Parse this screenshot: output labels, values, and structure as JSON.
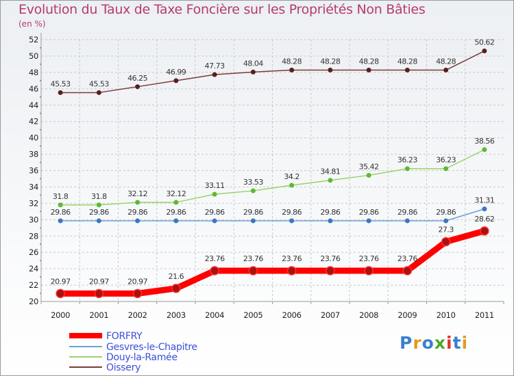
{
  "title": "Evolution du Taux de Taxe Foncière sur les Propriétés Non Bâties",
  "subtitle": "(en %)",
  "logo": {
    "text": "Proxiti",
    "colors": [
      "#3a7fd0",
      "#e39a1f",
      "#3a7fd0",
      "#4caa2c",
      "#e0342b",
      "#3a7fd0",
      "#e39a1f"
    ]
  },
  "chart_data": {
    "type": "line",
    "title": "Evolution du Taux de Taxe Foncière sur les Propriétés Non Bâties",
    "ylabel": "(en %)",
    "xlabel": "",
    "categories": [
      "2000",
      "2001",
      "2002",
      "2003",
      "2004",
      "2005",
      "2006",
      "2007",
      "2008",
      "2009",
      "2010",
      "2011"
    ],
    "ylim": [
      20,
      52
    ],
    "yticks": [
      "20",
      "22",
      "24",
      "26",
      "28",
      "30",
      "32",
      "34",
      "36",
      "38",
      "40",
      "42",
      "44",
      "46",
      "48",
      "50",
      "52"
    ],
    "grid": true,
    "legend_position": "bottom-left",
    "series": [
      {
        "name": "FORFRY",
        "color": "#ff0000",
        "point_color": "#aa1111",
        "width": 9,
        "marker": 6,
        "values": [
          20.97,
          20.97,
          20.97,
          21.6,
          23.76,
          23.76,
          23.76,
          23.76,
          23.76,
          23.76,
          27.3,
          28.62
        ],
        "labels": [
          "20.97",
          "20.97",
          "20.97",
          "21.6",
          "23.76",
          "23.76",
          "23.76",
          "23.76",
          "23.76",
          "23.76",
          "27.3",
          "28.62"
        ]
      },
      {
        "name": "Gesvres-le-Chapitre",
        "color": "#6a9fd4",
        "point_color": "#3a78c0",
        "width": 1.5,
        "marker": 3.5,
        "values": [
          29.86,
          29.86,
          29.86,
          29.86,
          29.86,
          29.86,
          29.86,
          29.86,
          29.86,
          29.86,
          29.86,
          31.31
        ],
        "labels": [
          "29.86",
          "29.86",
          "29.86",
          "29.86",
          "29.86",
          "29.86",
          "29.86",
          "29.86",
          "29.86",
          "29.86",
          "29.86",
          "31.31"
        ]
      },
      {
        "name": "Douy-la-Ramée",
        "color": "#9ad26a",
        "point_color": "#5fb832",
        "width": 1.5,
        "marker": 3.5,
        "values": [
          31.8,
          31.8,
          32.12,
          32.12,
          33.11,
          33.53,
          34.2,
          34.81,
          35.42,
          36.23,
          36.23,
          38.56
        ],
        "labels": [
          "31.8",
          "31.8",
          "32.12",
          "32.12",
          "33.11",
          "33.53",
          "34.2",
          "34.81",
          "35.42",
          "36.23",
          "36.23",
          "38.56"
        ]
      },
      {
        "name": "Oissery",
        "color": "#7a3a3a",
        "point_color": "#5a1f1f",
        "width": 1.5,
        "marker": 3.5,
        "values": [
          45.53,
          45.53,
          46.25,
          46.99,
          47.73,
          48.04,
          48.28,
          48.28,
          48.28,
          48.28,
          48.28,
          50.62
        ],
        "labels": [
          "45.53",
          "45.53",
          "46.25",
          "46.99",
          "47.73",
          "48.04",
          "48.28",
          "48.28",
          "48.28",
          "48.28",
          "48.28",
          "50.62"
        ]
      }
    ]
  }
}
